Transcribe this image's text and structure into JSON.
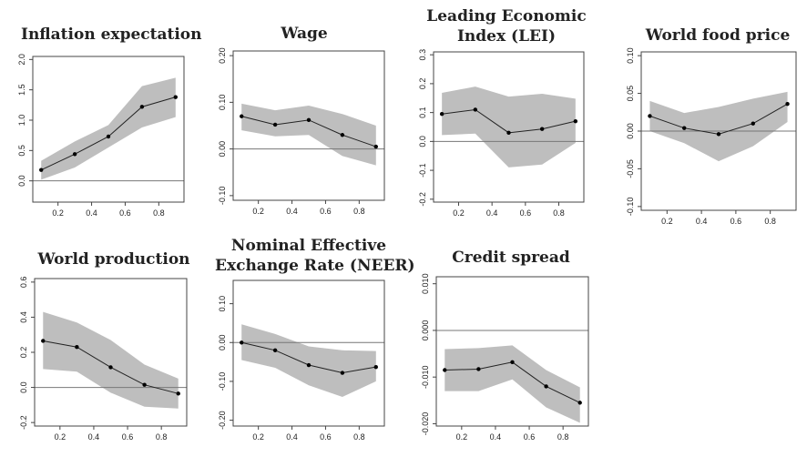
{
  "chart_data": [
    {
      "type": "line",
      "title": "Inflation expectation",
      "x": [
        0.1,
        0.3,
        0.5,
        0.7,
        0.9
      ],
      "series": [
        {
          "values": [
            0.18,
            0.44,
            0.73,
            1.22,
            1.38
          ]
        }
      ],
      "band_lower": [
        0.02,
        0.22,
        0.55,
        0.88,
        1.05
      ],
      "band_upper": [
        0.33,
        0.65,
        0.92,
        1.56,
        1.7
      ],
      "xlim": [
        0.05,
        0.95
      ],
      "ylim": [
        -0.35,
        2.05
      ],
      "xticks": [
        "0.2",
        "0.4",
        "0.6",
        "0.8"
      ],
      "yticks": [
        "0.0",
        "0.5",
        "1.0",
        "1.5",
        "2.0"
      ],
      "reference_line": 0
    },
    {
      "type": "line",
      "title": "Wage",
      "x": [
        0.1,
        0.3,
        0.5,
        0.7,
        0.9
      ],
      "series": [
        {
          "values": [
            0.07,
            0.052,
            0.062,
            0.03,
            0.005
          ]
        }
      ],
      "band_lower": [
        0.04,
        0.027,
        0.03,
        -0.015,
        -0.035
      ],
      "band_upper": [
        0.097,
        0.083,
        0.093,
        0.075,
        0.05
      ],
      "xlim": [
        0.05,
        0.95
      ],
      "ylim": [
        -0.11,
        0.21
      ],
      "xticks": [
        "0.2",
        "0.4",
        "0.6",
        "0.8"
      ],
      "yticks": [
        "-0.10",
        "0.00",
        "0.10",
        "0.20"
      ],
      "reference_line": 0
    },
    {
      "type": "line",
      "title": "Leading Economic Index (LEI)",
      "x": [
        0.1,
        0.3,
        0.5,
        0.7,
        0.9
      ],
      "series": [
        {
          "values": [
            0.095,
            0.11,
            0.03,
            0.043,
            0.07
          ]
        }
      ],
      "band_lower": [
        0.022,
        0.027,
        -0.09,
        -0.08,
        -0.005
      ],
      "band_upper": [
        0.168,
        0.19,
        0.155,
        0.165,
        0.148
      ],
      "xlim": [
        0.05,
        0.95
      ],
      "ylim": [
        -0.21,
        0.31
      ],
      "xticks": [
        "0.2",
        "0.4",
        "0.6",
        "0.8"
      ],
      "yticks": [
        "-0.2",
        "-0.1",
        "0.0",
        "0.1",
        "0.2",
        "0.3"
      ],
      "reference_line": 0
    },
    {
      "type": "line",
      "title": "World food price",
      "x": [
        0.1,
        0.3,
        0.5,
        0.7,
        0.9
      ],
      "series": [
        {
          "values": [
            0.02,
            0.004,
            -0.004,
            0.01,
            0.036
          ]
        }
      ],
      "band_lower": [
        0.0,
        -0.016,
        -0.04,
        -0.02,
        0.012
      ],
      "band_upper": [
        0.04,
        0.024,
        0.032,
        0.043,
        0.052
      ],
      "xlim": [
        0.05,
        0.95
      ],
      "ylim": [
        -0.105,
        0.105
      ],
      "xticks": [
        "0.2",
        "0.4",
        "0.6",
        "0.8"
      ],
      "yticks": [
        "-0.10",
        "-0.05",
        "0.00",
        "0.05",
        "0.10"
      ],
      "reference_line": 0
    },
    {
      "type": "line",
      "title": "World production",
      "x": [
        0.1,
        0.3,
        0.5,
        0.7,
        0.9
      ],
      "series": [
        {
          "values": [
            0.265,
            0.23,
            0.115,
            0.015,
            -0.035
          ]
        }
      ],
      "band_lower": [
        0.105,
        0.09,
        -0.03,
        -0.11,
        -0.12
      ],
      "band_upper": [
        0.43,
        0.37,
        0.27,
        0.13,
        0.05
      ],
      "xlim": [
        0.05,
        0.95
      ],
      "ylim": [
        -0.22,
        0.62
      ],
      "xticks": [
        "0.2",
        "0.4",
        "0.6",
        "0.8"
      ],
      "yticks": [
        "-0.2",
        "0.0",
        "0.2",
        "0.4",
        "0.6"
      ],
      "reference_line": 0
    },
    {
      "type": "line",
      "title": "Nominal Effective Exchange Rate (NEER)",
      "x": [
        0.1,
        0.3,
        0.5,
        0.7,
        0.9
      ],
      "series": [
        {
          "values": [
            0.0,
            -0.02,
            -0.058,
            -0.078,
            -0.063
          ]
        }
      ],
      "band_lower": [
        -0.045,
        -0.065,
        -0.11,
        -0.14,
        -0.1
      ],
      "band_upper": [
        0.047,
        0.022,
        -0.01,
        -0.02,
        -0.022
      ],
      "xlim": [
        0.05,
        0.95
      ],
      "ylim": [
        -0.215,
        0.16
      ],
      "xticks": [
        "0.2",
        "0.4",
        "0.6",
        "0.8"
      ],
      "yticks": [
        "-0.20",
        "-0.10",
        "0.00",
        "0.10"
      ],
      "reference_line": 0
    },
    {
      "type": "line",
      "title": "Credit spread",
      "x": [
        0.1,
        0.3,
        0.5,
        0.7,
        0.9
      ],
      "series": [
        {
          "values": [
            -0.0085,
            -0.0083,
            -0.0068,
            -0.012,
            -0.0155
          ]
        }
      ],
      "band_lower": [
        -0.013,
        -0.013,
        -0.0105,
        -0.0165,
        -0.0198
      ],
      "band_upper": [
        -0.004,
        -0.0038,
        -0.0032,
        -0.0085,
        -0.0122
      ],
      "xlim": [
        0.05,
        0.95
      ],
      "ylim": [
        -0.0205,
        0.0115
      ],
      "xticks": [
        "0.2",
        "0.4",
        "0.6",
        "0.8"
      ],
      "yticks": [
        "-0.020",
        "-0.010",
        "0.000",
        "0.010"
      ],
      "reference_line": 0
    }
  ]
}
